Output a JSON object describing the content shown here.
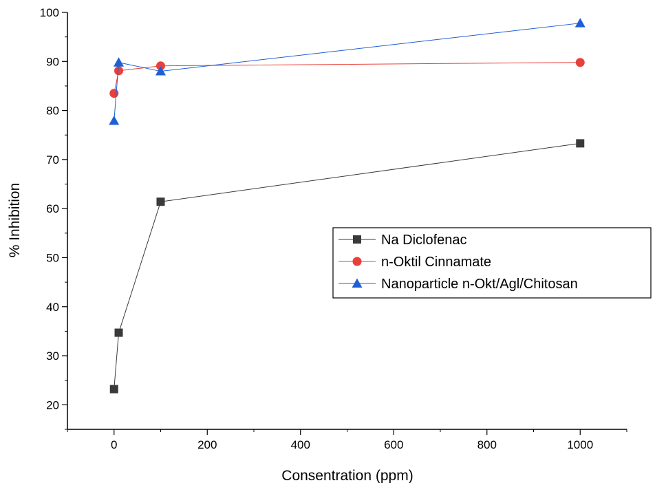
{
  "chart_data": {
    "type": "line",
    "title": "",
    "xlabel": "Consentration (ppm)",
    "ylabel": "% Inhibition",
    "xlim": [
      -100,
      1100
    ],
    "ylim": [
      15,
      100
    ],
    "xticks": [
      0,
      200,
      400,
      600,
      800,
      1000
    ],
    "yticks": [
      20,
      30,
      40,
      50,
      60,
      70,
      80,
      90,
      100
    ],
    "grid": false,
    "legend_position": "right",
    "series": [
      {
        "name": "Na Diclofenac",
        "marker": "square",
        "color": "#3a3a3a",
        "x": [
          0,
          10,
          100,
          1000
        ],
        "y": [
          23.2,
          34.7,
          61.4,
          73.3
        ]
      },
      {
        "name": "n-Oktil Cinnamate",
        "marker": "circle",
        "color": "#e8403a",
        "x": [
          0,
          10,
          100,
          1000
        ],
        "y": [
          83.5,
          88.1,
          89.1,
          89.8
        ]
      },
      {
        "name": "Nanoparticle n-Okt/Agl/Chitosan",
        "marker": "triangle",
        "color": "#1f5fd6",
        "x": [
          0,
          10,
          100,
          1000
        ],
        "y": [
          77.9,
          89.8,
          88.0,
          97.8
        ]
      }
    ]
  }
}
